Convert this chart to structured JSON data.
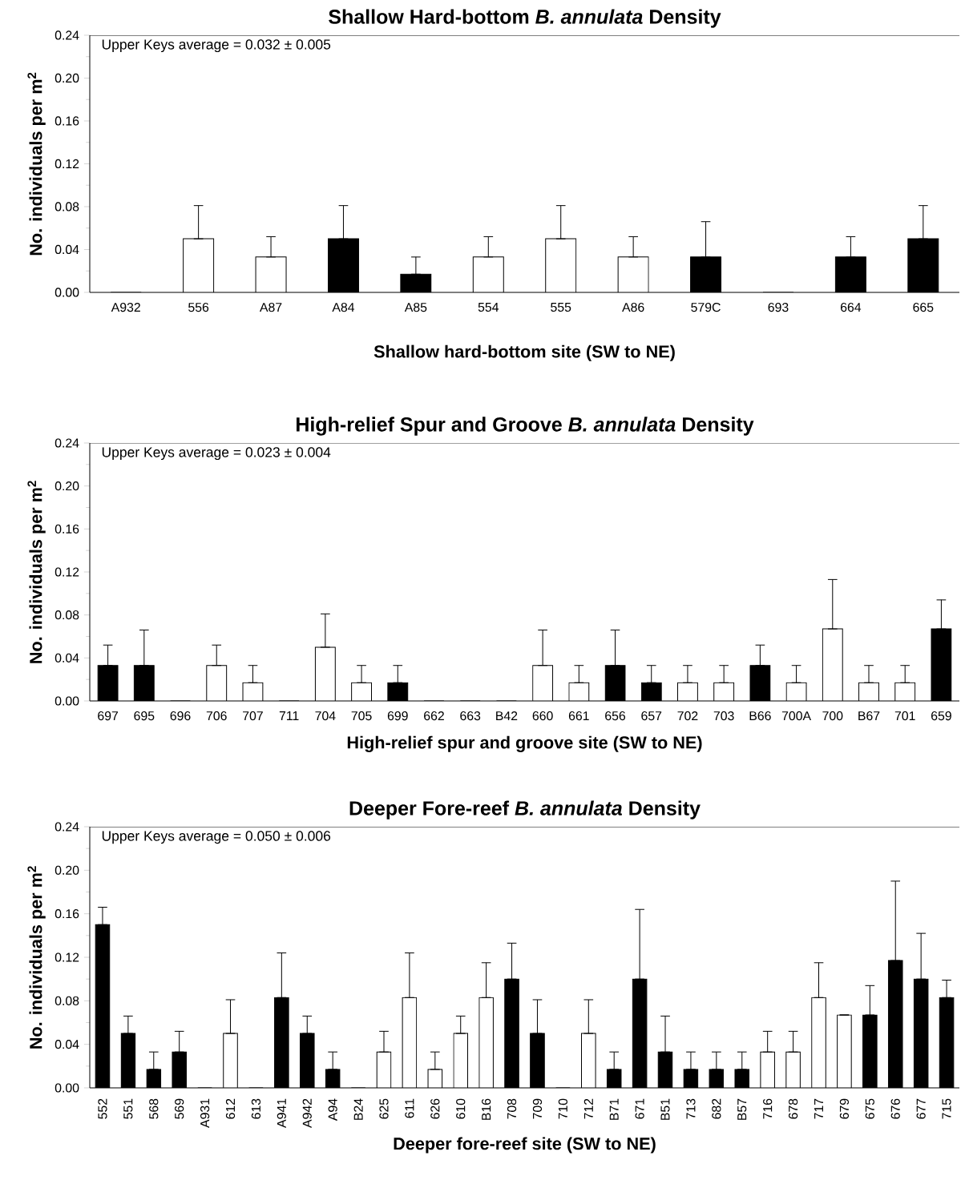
{
  "chart_data": [
    {
      "type": "bar",
      "title": "Shallow Hard-bottom *B. annulata* Density",
      "xlabel": "Shallow hard-bottom site (SW to NE)",
      "ylabel": "No. individuals per m$^{2}$",
      "annotations": [
        "Upper Keys average = 0.032 ± 0.005"
      ],
      "categories": [
        "A932",
        "556",
        "A87",
        "A84",
        "A85",
        "554",
        "555",
        "A86",
        "579C",
        "693",
        "664",
        "665"
      ],
      "values": [
        0,
        0.05,
        0.033,
        0.05,
        0.017,
        0.033,
        0.05,
        0.033,
        0.033,
        0,
        0.033,
        0.05
      ],
      "colors": [
        "#ffffff",
        "#ffffff",
        "#ffffff",
        "#000000",
        "#000000",
        "#ffffff",
        "#ffffff",
        "#ffffff",
        "#000000",
        "#ffffff",
        "#000000",
        "#000000"
      ],
      "errors": [
        null,
        [
          0.05,
          0.081
        ],
        [
          0.033,
          0.052
        ],
        [
          0.05,
          0.081
        ],
        [
          0.017,
          0.033
        ],
        [
          0.033,
          0.052
        ],
        [
          0.05,
          0.081
        ],
        [
          0.033,
          0.052
        ],
        [
          0.033,
          0.066
        ],
        null,
        [
          0.033,
          0.052
        ],
        [
          0.05,
          0.081
        ]
      ],
      "ylim": [
        0,
        0.24
      ],
      "yticks": [
        {
          "value": 0,
          "label": "0.00"
        },
        {
          "value": 0.04,
          "label": "0.04"
        },
        {
          "value": 0.08,
          "label": "0.08"
        },
        {
          "value": 0.12,
          "label": "0.12"
        },
        {
          "value": 0.16,
          "label": "0.16"
        },
        {
          "value": 0.2,
          "label": "0.20"
        },
        {
          "value": 0.24,
          "label": "0.24"
        }
      ]
    },
    {
      "type": "bar",
      "title": "High-relief Spur and Groove *B. annulata* Density",
      "xlabel": "High-relief spur and groove site (SW to NE)",
      "ylabel": "No. individuals per m$^{2}$",
      "annotations": [
        "Upper Keys average = 0.023 ± 0.004"
      ],
      "categories": [
        "697",
        "695",
        "696",
        "706",
        "707",
        "711",
        "704",
        "705",
        "699",
        "662",
        "663",
        "B42",
        "660",
        "661",
        "656",
        "657",
        "702",
        "703",
        "B66",
        "700A",
        "700",
        "B67",
        "701",
        "659"
      ],
      "values": [
        0.033,
        0.033,
        0,
        0.033,
        0.017,
        0,
        0.05,
        0.017,
        0.017,
        0,
        0,
        0,
        0.033,
        0.017,
        0.033,
        0.017,
        0.017,
        0.017,
        0.033,
        0.017,
        0.067,
        0.017,
        0.017,
        0.067
      ],
      "colors": [
        "#000000",
        "#000000",
        "#ffffff",
        "#ffffff",
        "#ffffff",
        "#ffffff",
        "#ffffff",
        "#ffffff",
        "#000000",
        "#ffffff",
        "#ffffff",
        "#ffffff",
        "#ffffff",
        "#ffffff",
        "#000000",
        "#000000",
        "#ffffff",
        "#ffffff",
        "#000000",
        "#ffffff",
        "#ffffff",
        "#ffffff",
        "#ffffff",
        "#000000"
      ],
      "errors": [
        [
          0.033,
          0.052
        ],
        [
          0.033,
          0.066
        ],
        null,
        [
          0.033,
          0.052
        ],
        [
          0.017,
          0.033
        ],
        null,
        [
          0.05,
          0.081
        ],
        [
          0.017,
          0.033
        ],
        [
          0.017,
          0.033
        ],
        null,
        null,
        null,
        [
          0.033,
          0.066
        ],
        [
          0.017,
          0.033
        ],
        [
          0.033,
          0.066
        ],
        [
          0.017,
          0.033
        ],
        [
          0.017,
          0.033
        ],
        [
          0.017,
          0.033
        ],
        [
          0.033,
          0.052
        ],
        [
          0.017,
          0.033
        ],
        [
          0.067,
          0.113
        ],
        [
          0.017,
          0.033
        ],
        [
          0.017,
          0.033
        ],
        [
          0.067,
          0.094
        ]
      ],
      "ylim": [
        0,
        0.24
      ],
      "yticks": [
        {
          "value": 0,
          "label": "0.00"
        },
        {
          "value": 0.04,
          "label": "0.04"
        },
        {
          "value": 0.08,
          "label": "0.08"
        },
        {
          "value": 0.12,
          "label": "0.12"
        },
        {
          "value": 0.16,
          "label": "0.16"
        },
        {
          "value": 0.2,
          "label": "0.20"
        },
        {
          "value": 0.24,
          "label": "0.24"
        }
      ]
    },
    {
      "type": "bar",
      "title": "Deeper Fore-reef *B. annulata* Density",
      "xlabel": "Deeper fore-reef site (SW to NE)",
      "ylabel": "No. individuals per m$^{2}$",
      "annotations": [
        "Upper Keys average = 0.050 ± 0.006"
      ],
      "categories": [
        "552",
        "551",
        "568",
        "569",
        "A931",
        "612",
        "613",
        "A941",
        "A942",
        "A94",
        "B24",
        "625",
        "611",
        "626",
        "610",
        "B16",
        "708",
        "709",
        "710",
        "712",
        "B71",
        "671",
        "B51",
        "713",
        "682",
        "B57",
        "716",
        "678",
        "717",
        "679",
        "675",
        "676",
        "677",
        "715"
      ],
      "values": [
        0.15,
        0.05,
        0.017,
        0.033,
        0,
        0.05,
        0,
        0.083,
        0.05,
        0.017,
        0,
        0.033,
        0.083,
        0.017,
        0.05,
        0.083,
        0.1,
        0.05,
        0,
        0.05,
        0.017,
        0.1,
        0.033,
        0.017,
        0.017,
        0.017,
        0.033,
        0.033,
        0.083,
        0.067,
        0.067,
        0.117,
        0.1,
        0.083
      ],
      "colors": [
        "#000000",
        "#000000",
        "#000000",
        "#000000",
        "#ffffff",
        "#ffffff",
        "#ffffff",
        "#000000",
        "#000000",
        "#000000",
        "#ffffff",
        "#ffffff",
        "#ffffff",
        "#ffffff",
        "#ffffff",
        "#ffffff",
        "#000000",
        "#000000",
        "#ffffff",
        "#ffffff",
        "#000000",
        "#000000",
        "#000000",
        "#000000",
        "#000000",
        "#000000",
        "#ffffff",
        "#ffffff",
        "#ffffff",
        "#ffffff",
        "#000000",
        "#000000",
        "#000000",
        "#000000"
      ],
      "errors": [
        [
          0.15,
          0.166
        ],
        [
          0.05,
          0.066
        ],
        [
          0.017,
          0.033
        ],
        [
          0.033,
          0.052
        ],
        null,
        [
          0.05,
          0.081
        ],
        null,
        [
          0.083,
          0.124
        ],
        [
          0.05,
          0.066
        ],
        [
          0.017,
          0.033
        ],
        null,
        [
          0.033,
          0.052
        ],
        [
          0.083,
          0.124
        ],
        [
          0.017,
          0.033
        ],
        [
          0.05,
          0.066
        ],
        [
          0.083,
          0.115
        ],
        [
          0.1,
          0.133
        ],
        [
          0.05,
          0.081
        ],
        null,
        [
          0.05,
          0.081
        ],
        [
          0.017,
          0.033
        ],
        [
          0.1,
          0.164
        ],
        [
          0.033,
          0.066
        ],
        [
          0.017,
          0.033
        ],
        [
          0.017,
          0.033
        ],
        [
          0.017,
          0.033
        ],
        [
          0.033,
          0.052
        ],
        [
          0.033,
          0.052
        ],
        [
          0.083,
          0.115
        ],
        [
          0.067,
          0.067
        ],
        [
          0.067,
          0.094
        ],
        [
          0.117,
          0.19
        ],
        [
          0.1,
          0.142
        ],
        [
          0.083,
          0.099
        ]
      ],
      "ylim": [
        0,
        0.24
      ],
      "yticks": [
        {
          "value": 0,
          "label": "0.00"
        },
        {
          "value": 0.04,
          "label": "0.04"
        },
        {
          "value": 0.08,
          "label": "0.08"
        },
        {
          "value": 0.12,
          "label": "0.12"
        },
        {
          "value": 0.16,
          "label": "0.16"
        },
        {
          "value": 0.2,
          "label": "0.20"
        },
        {
          "value": 0.24,
          "label": "0.24"
        }
      ]
    }
  ]
}
